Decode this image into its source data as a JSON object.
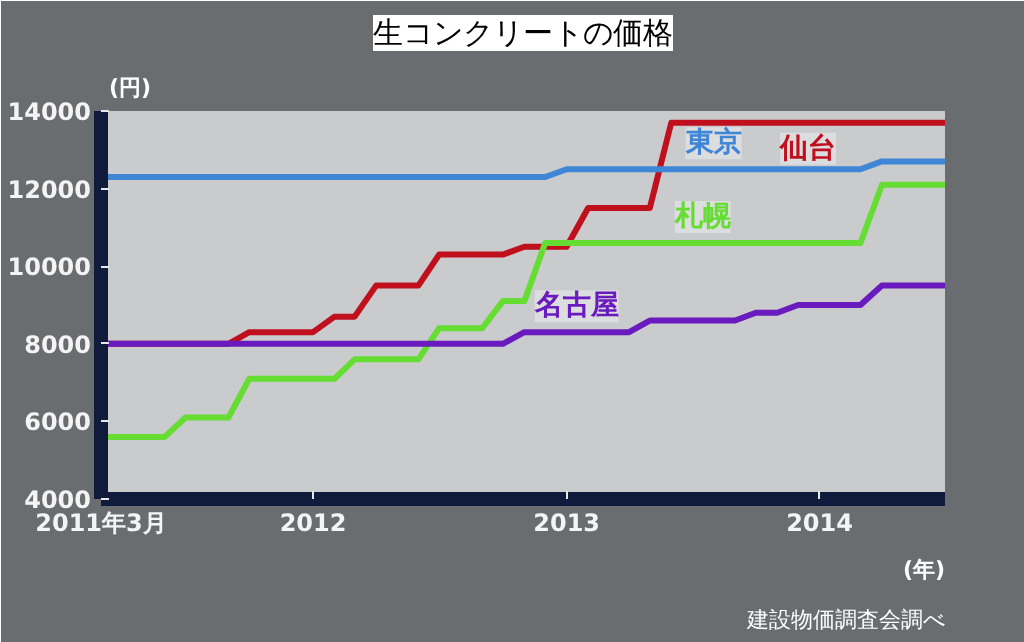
{
  "chart_data": {
    "type": "line",
    "title": "生コンクリートの価格",
    "ylabel": "(円)",
    "xlabel": "(年)",
    "annotations": [
      "建設物価調査会調べ"
    ],
    "xlim": [
      "2011-03",
      "2014-07"
    ],
    "ylim": [
      4000,
      14000
    ],
    "xticks": [
      {
        "value": "2011-03",
        "label": "2011年3月"
      },
      {
        "value": "2012-01",
        "label": "2012"
      },
      {
        "value": "2013-01",
        "label": "2013"
      },
      {
        "value": "2014-01",
        "label": "2014"
      }
    ],
    "yticks": [
      4000,
      6000,
      8000,
      10000,
      12000,
      14000
    ],
    "grid": false,
    "legend": false,
    "series": [
      {
        "name": "仙台",
        "color": "#c0101e",
        "x": [
          "2011-03",
          "2011-09",
          "2011-10",
          "2012-01",
          "2012-02",
          "2012-03",
          "2012-04",
          "2012-06",
          "2012-07",
          "2012-10",
          "2012-11",
          "2013-01",
          "2013-02",
          "2013-05",
          "2013-06",
          "2014-07"
        ],
        "values": [
          8000,
          8000,
          8300,
          8300,
          8700,
          8700,
          9500,
          9500,
          10300,
          10300,
          10500,
          10500,
          11500,
          11500,
          13700,
          13700
        ]
      },
      {
        "name": "東京",
        "color": "#3f86d6",
        "x": [
          "2011-03",
          "2012-12",
          "2013-01",
          "2014-03",
          "2014-04",
          "2014-07"
        ],
        "values": [
          12300,
          12300,
          12500,
          12500,
          12700,
          12700
        ]
      },
      {
        "name": "札幌",
        "color": "#66dd33",
        "x": [
          "2011-03",
          "2011-06",
          "2011-07",
          "2011-09",
          "2011-10",
          "2012-02",
          "2012-03",
          "2012-06",
          "2012-07",
          "2012-09",
          "2012-10",
          "2012-11",
          "2012-12",
          "2014-03",
          "2014-04",
          "2014-07"
        ],
        "values": [
          5600,
          5600,
          6100,
          6100,
          7100,
          7100,
          7600,
          7600,
          8400,
          8400,
          9100,
          9100,
          10600,
          10600,
          12100,
          12100
        ]
      },
      {
        "name": "名古屋",
        "color": "#6a1bbf",
        "x": [
          "2011-03",
          "2012-10",
          "2012-11",
          "2013-04",
          "2013-05",
          "2013-09",
          "2013-10",
          "2013-11",
          "2013-12",
          "2014-03",
          "2014-04",
          "2014-07"
        ],
        "values": [
          8000,
          8000,
          8300,
          8300,
          8600,
          8600,
          8800,
          8800,
          9000,
          9000,
          9500,
          9500
        ]
      }
    ]
  }
}
